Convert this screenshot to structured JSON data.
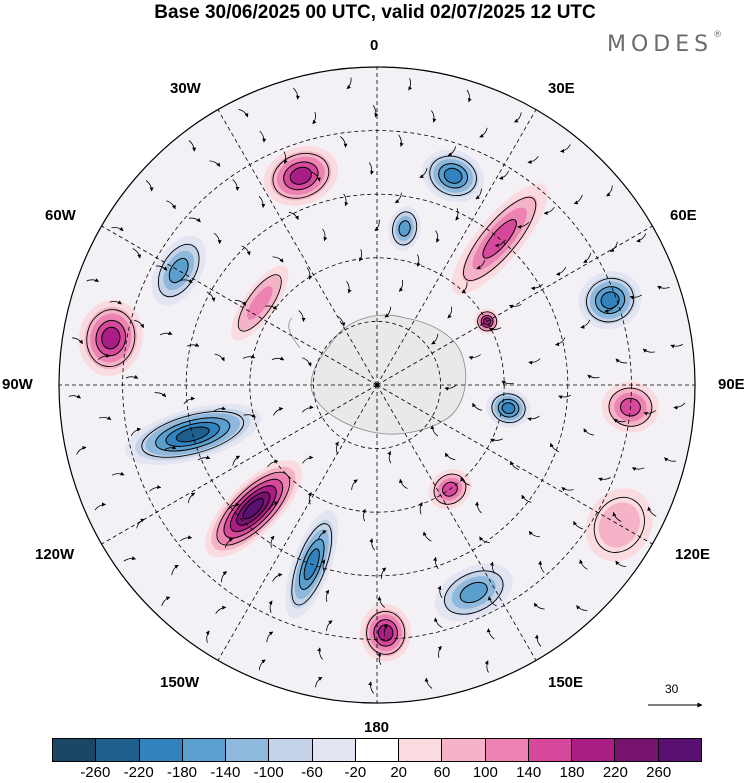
{
  "title": "Base 30/06/2025 00 UTC, valid 02/07/2025 12 UTC",
  "brand": "MODES",
  "brand_mark": "®",
  "longitude_labels": {
    "top": "0",
    "top_right": "30E",
    "right_upper": "60E",
    "right": "90E",
    "right_lower": "120E",
    "bottom_right": "150E",
    "bottom": "180",
    "bottom_left": "150W",
    "left_lower": "120W",
    "left": "90W",
    "left_upper": "60W",
    "top_left": "30W"
  },
  "reference_vector": "30",
  "colorbar": {
    "ticks": [
      "-260",
      "-220",
      "-180",
      "-140",
      "-100",
      "-60",
      "-20",
      "20",
      "60",
      "100",
      "140",
      "180",
      "220",
      "260"
    ],
    "colors": [
      "#1b4766",
      "#1f5f8e",
      "#3283bd",
      "#5a9fcd",
      "#8fb8dd",
      "#c5d3e8",
      "#e4e5f2",
      "#ffffff",
      "#f9dbe0",
      "#f4b3c6",
      "#ec83b2",
      "#d6489c",
      "#a81e84",
      "#761470",
      "#5a1070"
    ]
  },
  "anomalies": [
    {
      "type": "negative",
      "lon": 20,
      "lat_dist": 0.7,
      "level": 5,
      "sx": 0.1,
      "sy": 0.08
    },
    {
      "type": "negative",
      "lon": 10,
      "lat_dist": 0.5,
      "level": 4,
      "sx": 0.05,
      "sy": 0.07
    },
    {
      "type": "positive",
      "lon": -20,
      "lat_dist": 0.7,
      "level": 5,
      "sx": 0.12,
      "sy": 0.09
    },
    {
      "type": "negative",
      "lon": -60,
      "lat_dist": 0.72,
      "level": 4,
      "sx": 0.12,
      "sy": 0.07
    },
    {
      "type": "positive",
      "lon": -80,
      "lat_dist": 0.85,
      "level": 5,
      "sx": 0.12,
      "sy": 0.1
    },
    {
      "type": "positive",
      "lon": -55,
      "lat_dist": 0.45,
      "level": 3,
      "sx": 0.14,
      "sy": 0.05
    },
    {
      "type": "negative",
      "lon": -105,
      "lat_dist": 0.6,
      "level": 6,
      "sx": 0.08,
      "sy": 0.22
    },
    {
      "type": "positive",
      "lon": -135,
      "lat_dist": 0.55,
      "level": 7,
      "sx": 0.08,
      "sy": 0.2
    },
    {
      "type": "negative",
      "lon": -160,
      "lat_dist": 0.6,
      "level": 5,
      "sx": 0.06,
      "sy": 0.18
    },
    {
      "type": "positive",
      "lon": 178,
      "lat_dist": 0.78,
      "level": 5,
      "sx": 0.08,
      "sy": 0.09
    },
    {
      "type": "negative",
      "lon": 155,
      "lat_dist": 0.72,
      "level": 4,
      "sx": 0.13,
      "sy": 0.08
    },
    {
      "type": "positive",
      "lon": 145,
      "lat_dist": 0.4,
      "level": 4,
      "sx": 0.07,
      "sy": 0.06
    },
    {
      "type": "negative",
      "lon": 100,
      "lat_dist": 0.42,
      "level": 5,
      "sx": 0.06,
      "sy": 0.07
    },
    {
      "type": "positive",
      "lon": 95,
      "lat_dist": 0.8,
      "level": 4,
      "sx": 0.08,
      "sy": 0.09
    },
    {
      "type": "negative",
      "lon": 70,
      "lat_dist": 0.78,
      "level": 5,
      "sx": 0.09,
      "sy": 0.1
    },
    {
      "type": "positive",
      "lon": 40,
      "lat_dist": 0.6,
      "level": 4,
      "sx": 0.07,
      "sy": 0.22
    },
    {
      "type": "positive",
      "lon": 120,
      "lat_dist": 0.88,
      "level": 2,
      "sx": 0.12,
      "sy": 0.1
    },
    {
      "type": "positive",
      "lon": 60,
      "lat_dist": 0.4,
      "level": 5,
      "sx": 0.04,
      "sy": 0.04
    }
  ]
}
